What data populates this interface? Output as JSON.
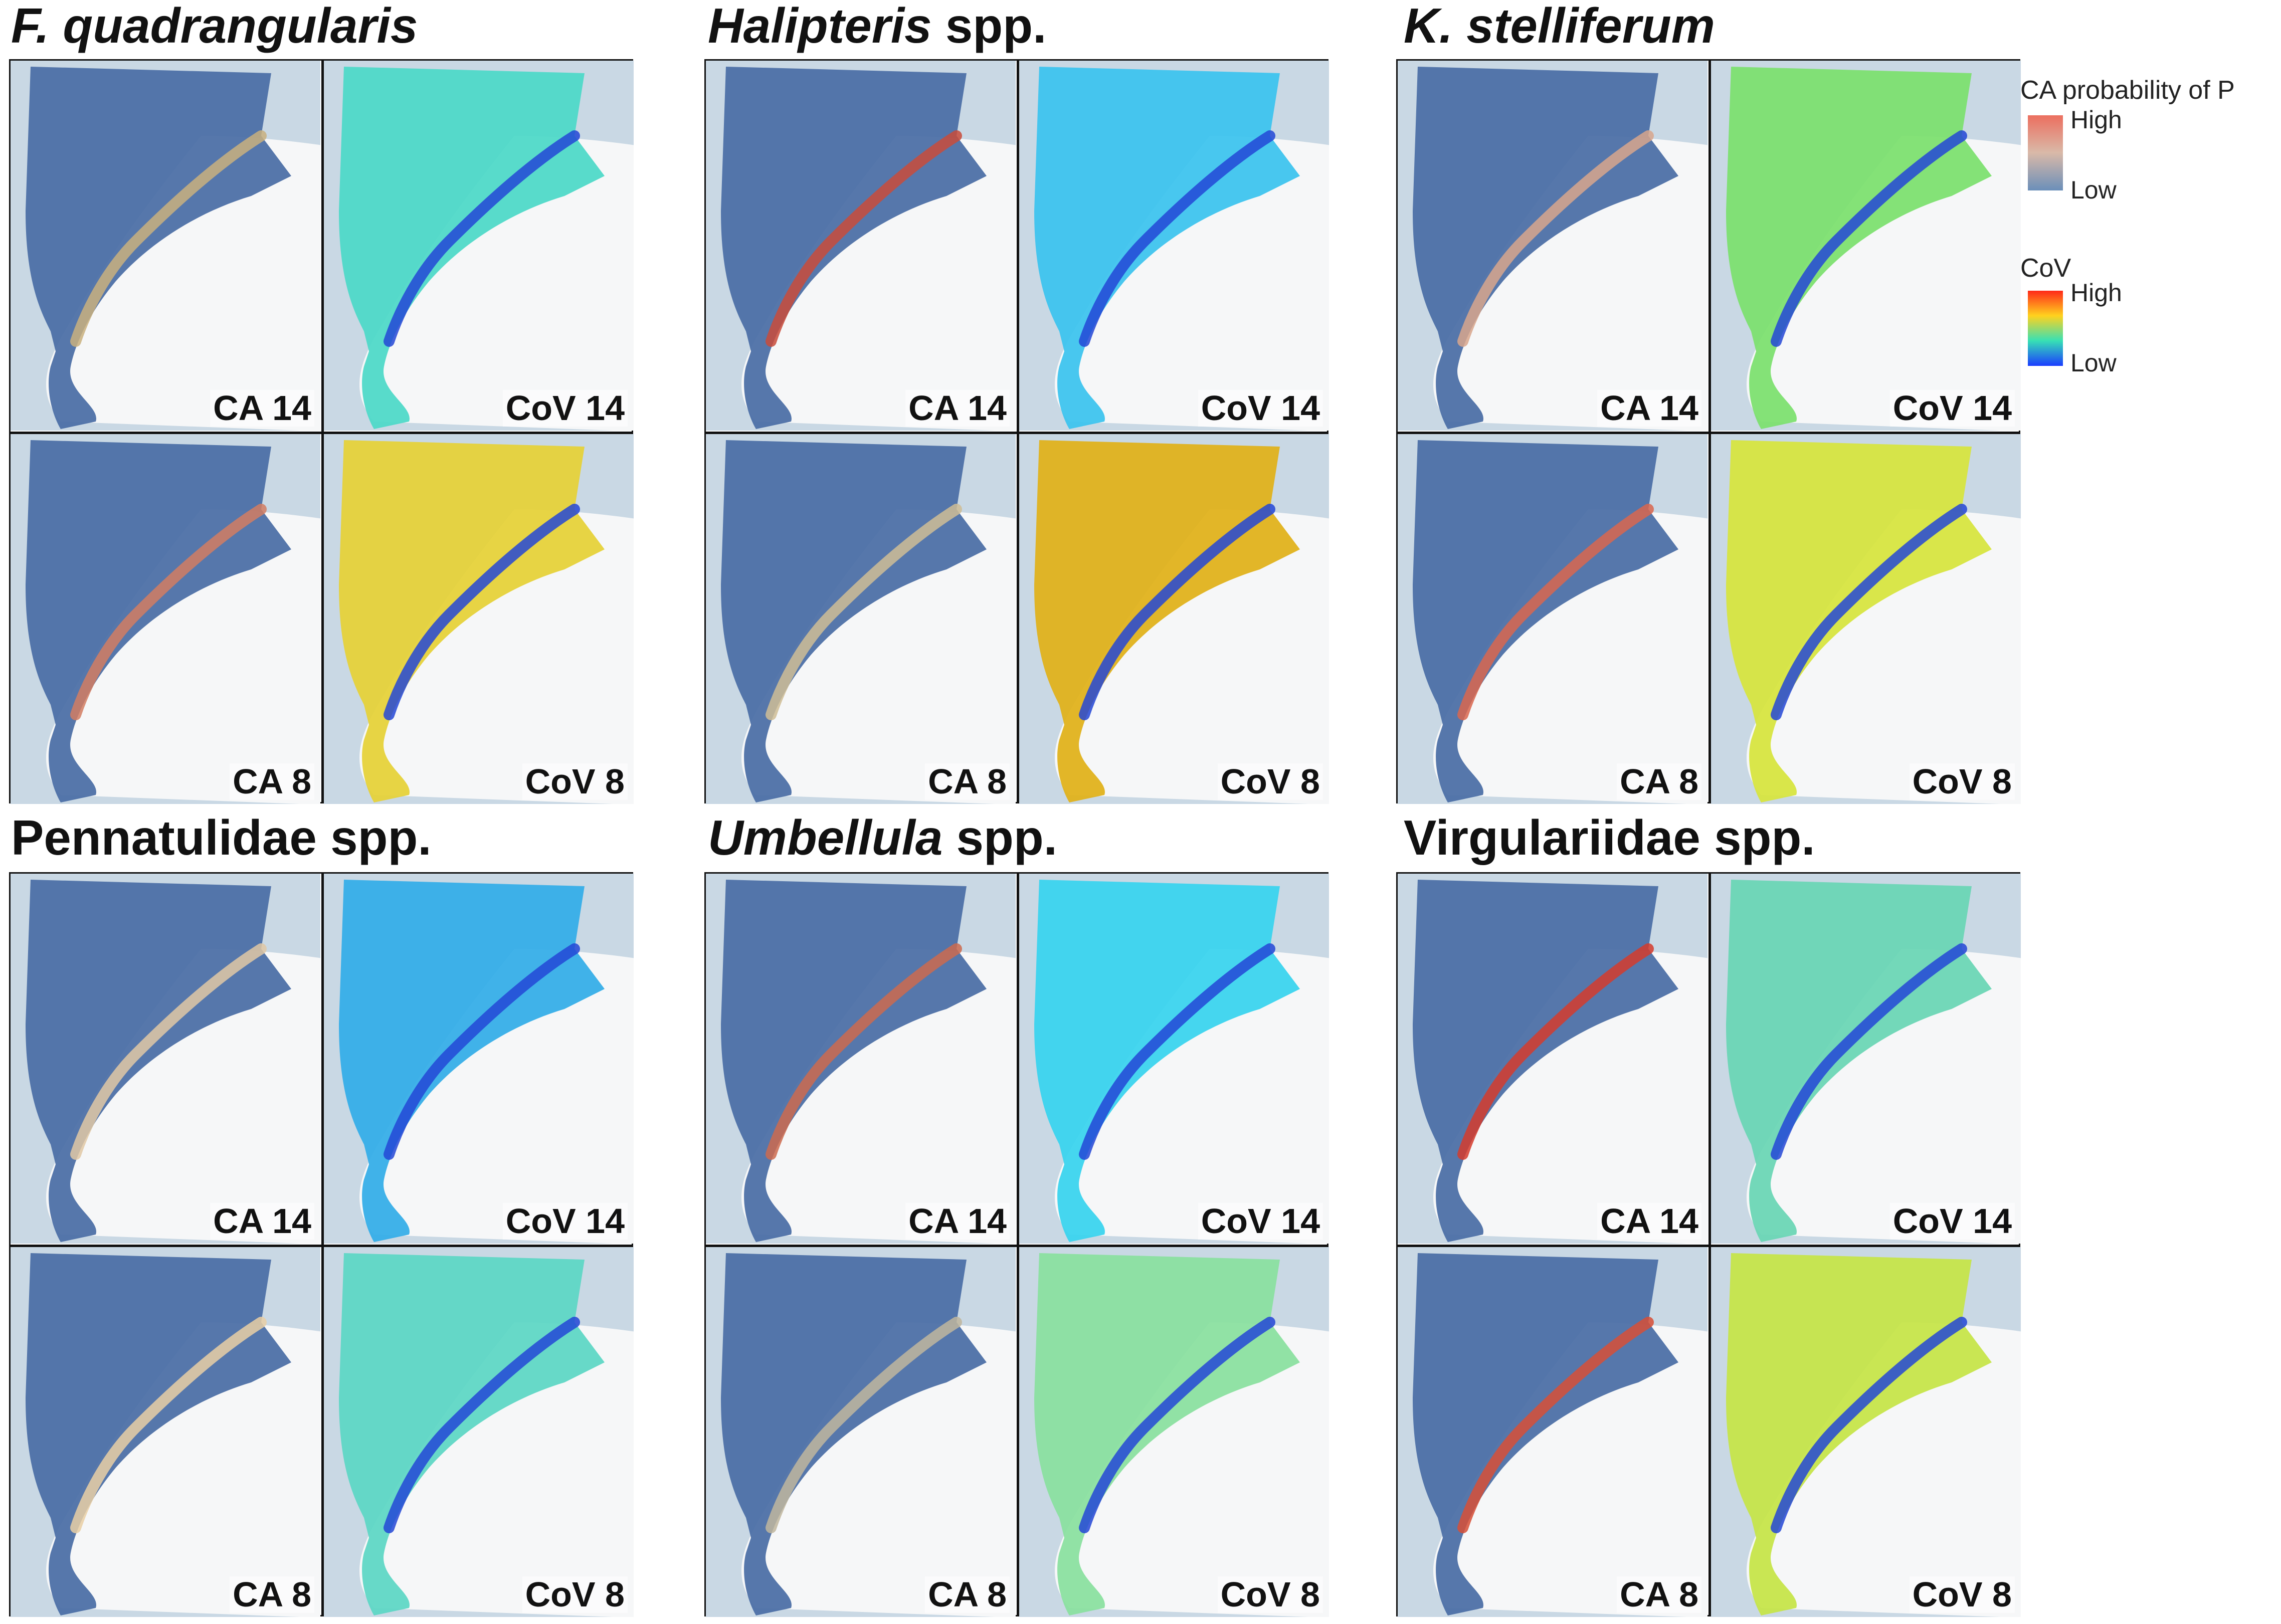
{
  "species": [
    {
      "title_italic": "F. quadrangularis",
      "title_plain": "",
      "theme": {
        "ca14": "#c9b07e",
        "cov14": "#4fd9c8",
        "ca8": "#d27d62",
        "cov8": "#e6d23a"
      }
    },
    {
      "title_italic": "Halipteris",
      "title_plain": " spp.",
      "theme": {
        "ca14": "#c94b3a",
        "cov14": "#3ec4ee",
        "ca8": "#cfbd95",
        "cov8": "#e0b21c"
      }
    },
    {
      "title_italic": "K. stelliferum",
      "title_plain": "",
      "theme": {
        "ca14": "#d8a68c",
        "cov14": "#7de070",
        "ca8": "#d9664e",
        "cov8": "#d7e540"
      }
    },
    {
      "title_italic": "",
      "title_plain": "Pennatulidae spp.",
      "theme": {
        "ca14": "#e1c8a4",
        "cov14": "#36aee8",
        "ca8": "#e9cfa5",
        "cov8": "#5fd7c5"
      }
    },
    {
      "title_italic": "Umbellula",
      "title_plain": " spp.",
      "theme": {
        "ca14": "#cc6a4e",
        "cov14": "#3bd4ee",
        "ca8": "#c0b69e",
        "cov8": "#8be0a0"
      }
    },
    {
      "title_italic": "",
      "title_plain": "Virgulariidae spp.",
      "theme": {
        "ca14": "#d53b2b",
        "cov14": "#6bd6b5",
        "ca8": "#d74f36",
        "cov8": "#c6e54a"
      }
    }
  ],
  "panel_labels": {
    "ca14": "CA 14",
    "cov14": "CoV 14",
    "ca8": "CA 8",
    "cov8": "CoV 8"
  },
  "legend": {
    "ca_title": "CA probability of P",
    "ca_high": "High",
    "ca_low": "Low",
    "ca_colors": [
      "#ec6f5f",
      "#d9b9a8",
      "#6b8fb9"
    ],
    "cov_title": "CoV",
    "cov_high": "High",
    "cov_low": "Low",
    "cov_colors": [
      "#ff2a1a",
      "#ffd21e",
      "#37e0b5",
      "#1a3cff"
    ]
  },
  "colors": {
    "base_model": "#4d70a7",
    "land": "#f6f7f8",
    "sea_shade": "#c9d8e4"
  }
}
